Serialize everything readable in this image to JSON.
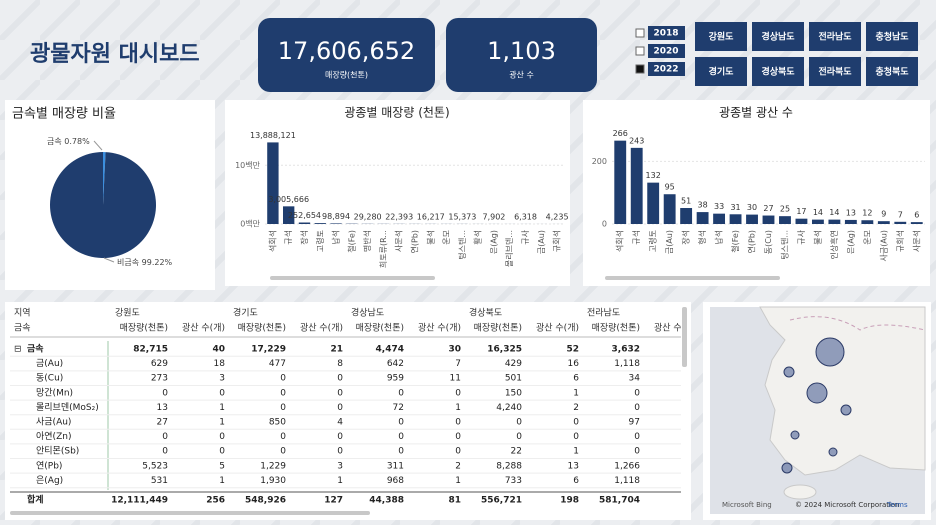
{
  "header": {
    "title": "광물자원 대시보드"
  },
  "kpis": [
    {
      "value": "17,606,652",
      "label": "매장량(천톤)"
    },
    {
      "value": "1,103",
      "label": "광산 수"
    }
  ],
  "year_slicer": {
    "years": [
      "2018",
      "2020",
      "2022"
    ],
    "selected": "2022"
  },
  "region_buttons": [
    "강원도",
    "경상남도",
    "전라남도",
    "충청남도",
    "경기도",
    "경상북도",
    "전라북도",
    "충청북도"
  ],
  "charts": [
    {
      "type": "pie",
      "title": "금속별 매장량 비율",
      "categories": [
        "금속",
        "비금속"
      ],
      "values": [
        0.78,
        99.22
      ],
      "value_labels": [
        "0.78%",
        "99.22%"
      ],
      "colors": [
        "#3a8fe0",
        "#1f3d6e"
      ]
    },
    {
      "type": "bar",
      "title": "광종별 매장량 (천톤)",
      "categories": [
        "석회석",
        "규석",
        "장석",
        "고령토",
        "납석",
        "철(Fe)",
        "명반석",
        "희토류(R...",
        "사문석",
        "연(Pb)",
        "불석",
        "운모",
        "텅스텐...",
        "활석",
        "은(Ag)",
        "몰리브덴...",
        "규사",
        "금(Au)",
        "규회석"
      ],
      "values": [
        13888121,
        3005666,
        252654,
        150000,
        98894,
        50000,
        29280,
        25000,
        22393,
        19000,
        16217,
        15800,
        15373,
        10000,
        7902,
        7000,
        6318,
        5000,
        4235
      ],
      "value_labels": [
        "13,888,121",
        "3,005,666",
        "252,654",
        null,
        "98,894",
        null,
        "29,280",
        null,
        "22,393",
        null,
        "16,217",
        null,
        "15,373",
        null,
        "7,902",
        null,
        "6,318",
        null,
        "4,235"
      ],
      "color": "#1f3d6e",
      "ylim": [
        0,
        16000000
      ],
      "yticks": [
        {
          "value": 0,
          "label": "0백만"
        },
        {
          "value": 10000000,
          "label": "10백만"
        }
      ]
    },
    {
      "type": "bar",
      "title": "광종별 광산 수",
      "categories": [
        "석회석",
        "규석",
        "고령토",
        "금(Au)",
        "장석",
        "형석",
        "납석",
        "철(Fe)",
        "연(Pb)",
        "동(Cu)",
        "텅스텐...",
        "규사",
        "불석",
        "인상흑연",
        "은(Ag)",
        "운모",
        "사금(Au)",
        "규회석",
        "사문석"
      ],
      "values": [
        266,
        243,
        132,
        95,
        51,
        38,
        33,
        31,
        30,
        27,
        25,
        17,
        14,
        14,
        13,
        12,
        9,
        7,
        6
      ],
      "color": "#1f3d6e",
      "ylim": [
        0,
        300
      ],
      "yticks": [
        0,
        200
      ]
    }
  ],
  "table": {
    "corner": [
      "지역",
      "금속"
    ],
    "regions": [
      "강원도",
      "경기도",
      "경상남도",
      "경상북도",
      "전라남도"
    ],
    "metrics": [
      "매장량(천톤)",
      "광산 수(개)"
    ],
    "rows": [
      {
        "label": "금속",
        "cells": [
          "82,715",
          "40",
          "17,229",
          "21",
          "4,474",
          "30",
          "16,325",
          "52",
          "3,632"
        ]
      },
      {
        "label": "금(Au)",
        "cells": [
          "629",
          "18",
          "477",
          "8",
          "642",
          "7",
          "429",
          "16",
          "1,118"
        ]
      },
      {
        "label": "동(Cu)",
        "cells": [
          "273",
          "3",
          "0",
          "0",
          "959",
          "11",
          "501",
          "6",
          "34"
        ]
      },
      {
        "label": "망간(Mn)",
        "cells": [
          "0",
          "0",
          "0",
          "0",
          "0",
          "0",
          "150",
          "1",
          "0"
        ]
      },
      {
        "label": "몰리브덴(MoS₂)",
        "cells": [
          "13",
          "1",
          "0",
          "0",
          "72",
          "1",
          "4,240",
          "2",
          "0"
        ]
      },
      {
        "label": "사금(Au)",
        "cells": [
          "27",
          "1",
          "850",
          "4",
          "0",
          "0",
          "0",
          "0",
          "97"
        ]
      },
      {
        "label": "아연(Zn)",
        "cells": [
          "0",
          "0",
          "0",
          "0",
          "0",
          "0",
          "0",
          "0",
          "0"
        ]
      },
      {
        "label": "안티몬(Sb)",
        "cells": [
          "0",
          "0",
          "0",
          "0",
          "0",
          "0",
          "22",
          "1",
          "0"
        ]
      },
      {
        "label": "연(Pb)",
        "cells": [
          "5,523",
          "5",
          "1,229",
          "3",
          "311",
          "2",
          "8,288",
          "13",
          "1,266"
        ]
      },
      {
        "label": "은(Ag)",
        "cells": [
          "531",
          "1",
          "1,930",
          "1",
          "968",
          "1",
          "733",
          "6",
          "1,118"
        ]
      }
    ],
    "total": {
      "label": "합계",
      "cells": [
        "12,111,449",
        "256",
        "548,926",
        "127",
        "44,388",
        "81",
        "556,721",
        "198",
        "581,704"
      ]
    }
  },
  "map": {
    "brand": "Microsoft Bing",
    "copyright": "© 2024 Microsoft Corporation",
    "terms": "Terms"
  }
}
